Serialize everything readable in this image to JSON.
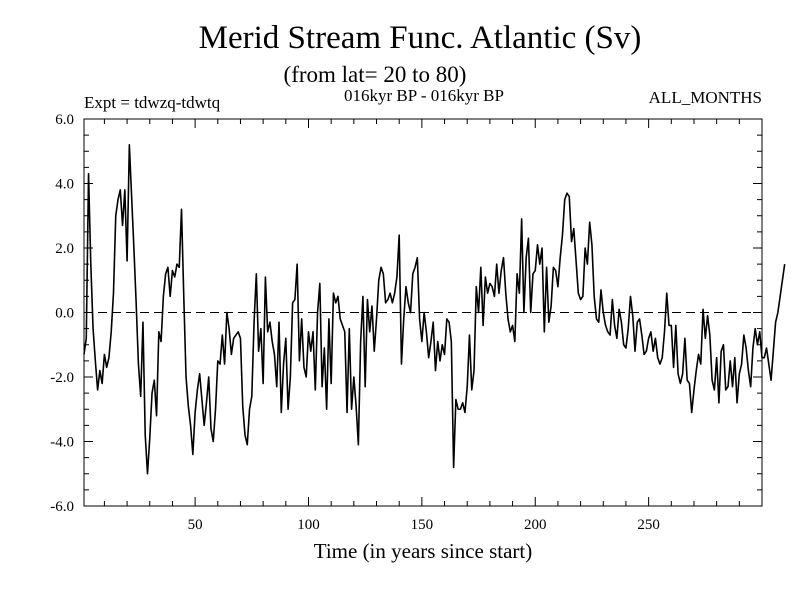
{
  "chart_data": {
    "type": "line",
    "title": "Merid Stream Func. Atlantic (Sv)",
    "subtitle": "(from lat= 20 to 80)",
    "experiment_label": "Expt = tdwzq-tdwtq",
    "period_label": "016kyr BP - 016kyr BP",
    "months_label": "ALL_MONTHS",
    "xlabel": "Time (in years since start)",
    "ylabel": "",
    "xlim": [
      1,
      300
    ],
    "ylim": [
      -6,
      6
    ],
    "x_ticks": [
      50,
      100,
      150,
      200,
      250
    ],
    "y_ticks": [
      -6.0,
      -4.0,
      -2.0,
      0.0,
      2.0,
      4.0,
      6.0
    ],
    "y_tick_labels": [
      "-6.0",
      "-4.0",
      "-2.0",
      "0.0",
      "2.0",
      "4.0",
      "6.0"
    ],
    "zero_line": true,
    "grid": false,
    "line_color": "#000000",
    "x_start": 1,
    "x_step": 1,
    "values": [
      -1.3,
      -0.8,
      4.3,
      1.5,
      -0.5,
      -1.5,
      -2.4,
      -1.8,
      -2.2,
      -1.3,
      -1.7,
      -1.4,
      -0.6,
      0.6,
      3.0,
      3.5,
      3.8,
      2.7,
      3.8,
      1.6,
      5.2,
      3.6,
      2.0,
      0.3,
      -1.6,
      -2.6,
      -0.3,
      -3.8,
      -5.0,
      -3.9,
      -2.5,
      -2.1,
      -3.2,
      -0.6,
      -0.9,
      0.5,
      1.2,
      1.4,
      0.5,
      1.3,
      1.1,
      1.5,
      1.4,
      3.2,
      0.5,
      -2.0,
      -2.9,
      -3.5,
      -4.4,
      -3.1,
      -2.4,
      -1.9,
      -2.7,
      -3.5,
      -2.8,
      -2.0,
      -3.6,
      -4.0,
      -3.0,
      -1.5,
      -1.6,
      -0.7,
      -1.6,
      0.0,
      -0.5,
      -1.3,
      -0.8,
      -0.7,
      -0.6,
      -0.8,
      -2.9,
      -3.8,
      -4.1,
      -3.0,
      -2.6,
      -0.3,
      1.2,
      -1.2,
      -0.5,
      -2.2,
      1.1,
      -0.6,
      -0.3,
      -0.9,
      -1.3,
      -2.3,
      -0.3,
      -3.1,
      -1.6,
      -0.8,
      -3.0,
      -2.0,
      0.3,
      0.4,
      1.5,
      -1.5,
      -0.2,
      -1.7,
      -2.0,
      -0.6,
      -1.2,
      -0.6,
      -2.4,
      0.0,
      0.9,
      -2.3,
      -1.1,
      -3.0,
      -0.2,
      -2.2,
      0.6,
      0.3,
      0.5,
      -0.2,
      -0.4,
      -0.6,
      -3.1,
      -0.5,
      -3.0,
      -2.0,
      -2.9,
      -4.1,
      -0.9,
      0.5,
      -2.3,
      0.4,
      -0.6,
      0.2,
      -1.2,
      -0.2,
      1.0,
      1.4,
      1.2,
      0.3,
      0.4,
      0.6,
      0.3,
      0.6,
      1.1,
      2.4,
      -1.6,
      -0.2,
      0.8,
      0.3,
      0.0,
      1.2,
      1.4,
      1.7,
      -0.2,
      -0.9,
      0.0,
      -0.6,
      -1.4,
      -0.9,
      -0.3,
      -1.8,
      -0.9,
      -1.5,
      -1.0,
      -1.3,
      -0.2,
      -0.3,
      -0.9,
      -4.8,
      -2.7,
      -3.0,
      -3.0,
      -2.8,
      -3.1,
      -2.3,
      -0.7,
      -2.4,
      -1.8,
      0.8,
      0.0,
      1.4,
      -0.4,
      1.1,
      0.6,
      0.9,
      0.8,
      0.5,
      1.5,
      0.6,
      1.3,
      1.7,
      0.6,
      -0.2,
      -0.6,
      -0.4,
      -0.9,
      1.2,
      0.6,
      2.9,
      0.0,
      1.7,
      2.3,
      0.0,
      1.2,
      1.3,
      2.1,
      1.5,
      2.0,
      -0.6,
      1.4,
      -0.3,
      0.2,
      1.4,
      1.3,
      0.8,
      1.7,
      2.4,
      3.5,
      3.7,
      3.6,
      2.2,
      2.6,
      1.6,
      0.6,
      0.4,
      0.5,
      2.0,
      1.5,
      2.8,
      2.1,
      0.5,
      -0.2,
      -0.3,
      0.7,
      0.0,
      -0.4,
      -0.6,
      -0.7,
      0.4,
      -0.4,
      -0.8,
      0.1,
      -0.3,
      -1.0,
      -1.1,
      -0.5,
      0.5,
      -0.1,
      -1.2,
      -0.3,
      -0.2,
      -0.7,
      -1.3,
      -1.2,
      -0.8,
      -0.6,
      -1.2,
      -0.8,
      -1.4,
      -1.6,
      -1.4,
      -0.6,
      0.6,
      -0.4,
      -0.4,
      -1.7,
      -0.4,
      -1.9,
      -2.2,
      -1.9,
      -0.8,
      -2.1,
      -2.2,
      -3.1,
      -2.4,
      -1.8,
      -1.3,
      -1.6,
      0.1,
      -0.8,
      -0.1,
      -0.7,
      -2.1,
      -2.4,
      -1.4,
      -2.8,
      -1.2,
      -1.0,
      -2.4,
      -2.3,
      -1.5,
      -2.3,
      -1.4,
      -2.8,
      -1.9,
      -1.6,
      -0.7,
      -1.1,
      -1.8,
      -2.3,
      -1.1,
      -0.5,
      -1.0,
      -0.6,
      -1.4,
      -1.4,
      -1.1,
      -1.6,
      -2.1,
      -1.2,
      -0.3,
      0.0,
      0.5,
      1.0,
      1.5
    ]
  }
}
